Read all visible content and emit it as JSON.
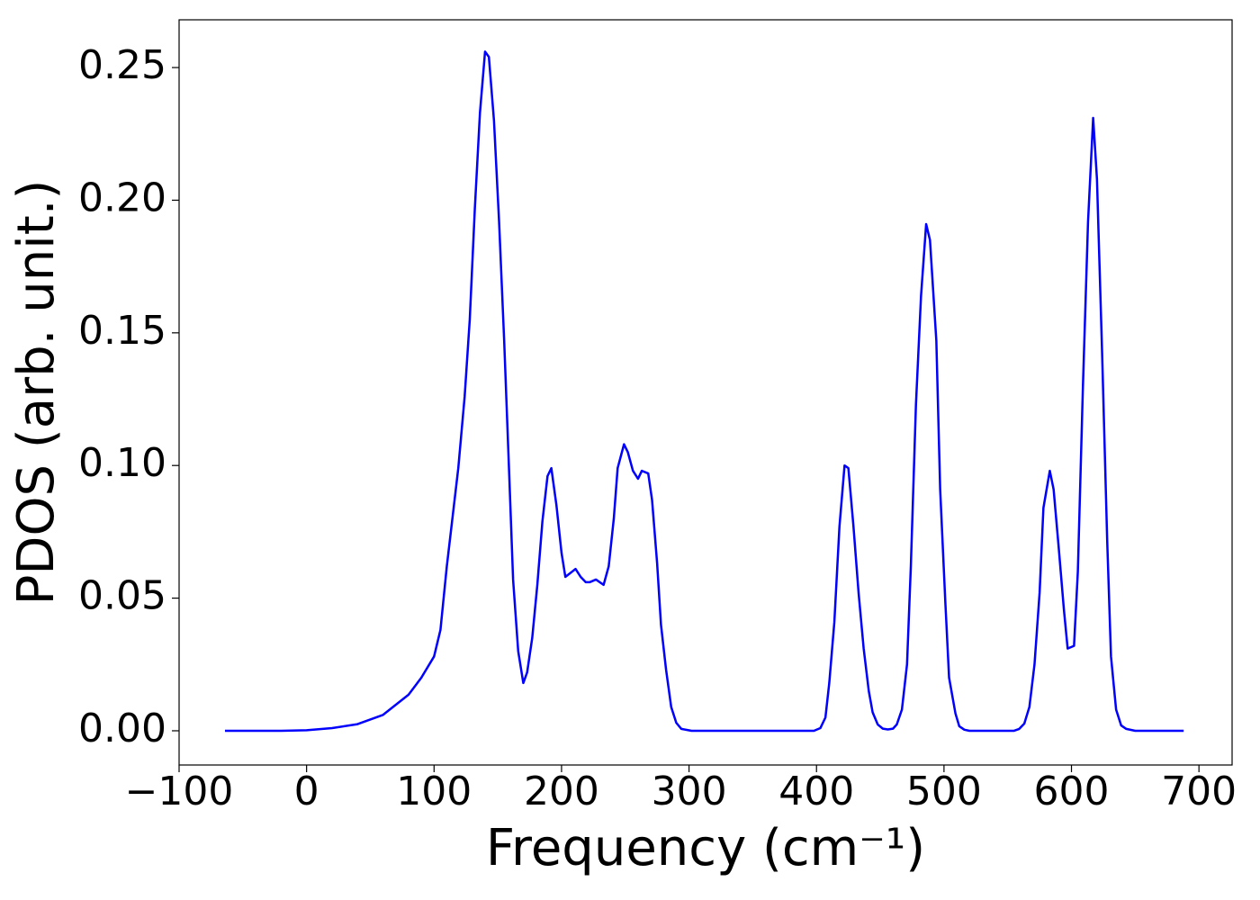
{
  "chart_data": {
    "type": "line",
    "xlabel": "Frequency (cm⁻¹)",
    "ylabel": "PDOS (arb. unit.)",
    "x": [
      -64,
      -40,
      -20,
      0,
      20,
      40,
      60,
      80,
      90,
      100,
      105,
      110,
      119,
      124,
      128,
      132,
      136,
      140,
      143,
      147,
      151,
      155,
      159,
      162,
      166,
      170,
      173,
      177,
      181,
      185,
      189,
      192,
      196,
      200,
      203,
      211,
      215,
      219,
      222,
      227,
      233,
      237,
      241,
      244,
      249,
      252,
      256,
      260,
      263,
      268,
      271,
      275,
      278,
      282,
      286,
      290,
      294,
      302,
      398,
      403,
      407,
      410,
      414,
      418,
      422,
      425,
      429,
      433,
      437,
      441,
      444,
      448,
      452,
      456,
      460,
      463,
      467,
      471,
      474,
      478,
      482,
      486,
      489,
      494,
      497,
      501,
      504,
      509,
      512,
      516,
      520,
      555,
      559,
      563,
      567,
      571,
      575,
      578,
      583,
      586,
      590,
      594,
      597,
      602,
      605,
      609,
      613,
      617,
      620,
      624,
      628,
      631,
      635,
      639,
      643,
      650,
      688
    ],
    "series": [
      {
        "name": "PDOS",
        "color": "#0000ff",
        "values": [
          0,
          0,
          0,
          0.0002,
          0.001,
          0.0025,
          0.006,
          0.0136,
          0.02,
          0.028,
          0.038,
          0.062,
          0.099,
          0.126,
          0.155,
          0.197,
          0.233,
          0.256,
          0.254,
          0.23,
          0.192,
          0.147,
          0.096,
          0.057,
          0.03,
          0.018,
          0.022,
          0.035,
          0.055,
          0.079,
          0.096,
          0.099,
          0.085,
          0.067,
          0.058,
          0.061,
          0.058,
          0.056,
          0.056,
          0.057,
          0.055,
          0.062,
          0.08,
          0.099,
          0.108,
          0.105,
          0.098,
          0.095,
          0.098,
          0.097,
          0.087,
          0.063,
          0.04,
          0.023,
          0.009,
          0.003,
          0.0007,
          0,
          0,
          0.001,
          0.005,
          0.018,
          0.041,
          0.077,
          0.1,
          0.099,
          0.077,
          0.052,
          0.031,
          0.015,
          0.007,
          0.0024,
          0.0008,
          0.0005,
          0.0008,
          0.0024,
          0.008,
          0.025,
          0.062,
          0.123,
          0.164,
          0.191,
          0.185,
          0.147,
          0.091,
          0.049,
          0.02,
          0.0065,
          0.0017,
          0.0004,
          0,
          0,
          0.0007,
          0.0027,
          0.009,
          0.025,
          0.052,
          0.084,
          0.098,
          0.091,
          0.069,
          0.046,
          0.031,
          0.032,
          0.06,
          0.13,
          0.192,
          0.231,
          0.208,
          0.143,
          0.072,
          0.028,
          0.008,
          0.002,
          0.0007,
          0,
          0
        ]
      }
    ],
    "xlim": [
      -100,
      726
    ],
    "ylim": [
      -0.0129,
      0.268
    ],
    "xticks": [
      {
        "value": -100,
        "label": "−100"
      },
      0,
      100,
      200,
      300,
      400,
      500,
      600,
      700
    ],
    "yticks": [
      {
        "value": 0,
        "label": "0.00"
      },
      0.05,
      {
        "value": 0.1,
        "label": "0.10"
      },
      0.15,
      {
        "value": 0.2,
        "label": "0.20"
      },
      0.25
    ]
  }
}
